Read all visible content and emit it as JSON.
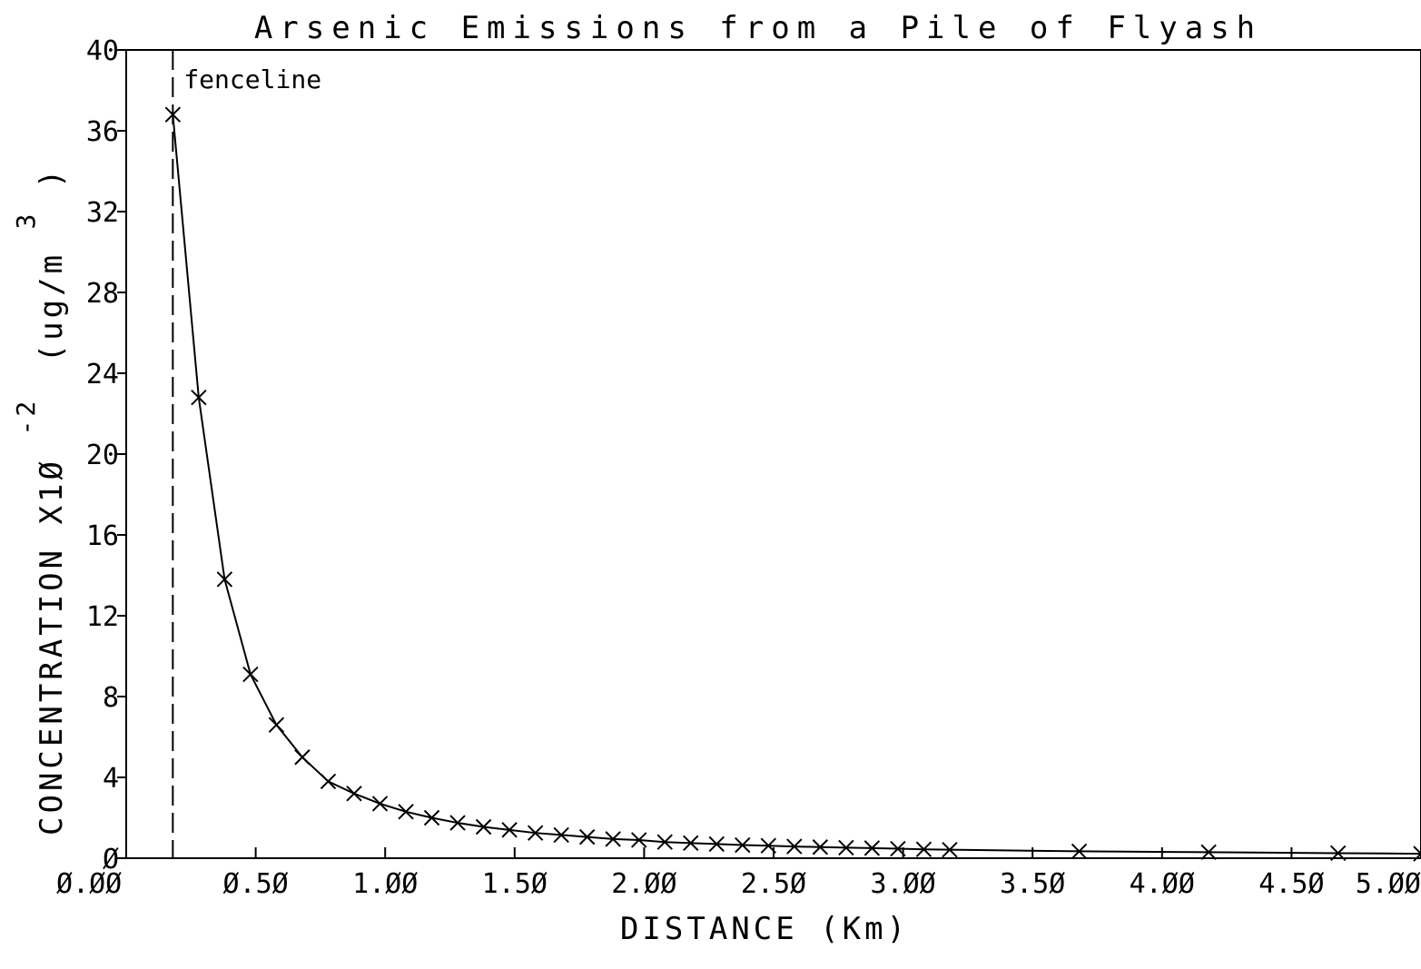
{
  "chart_data": {
    "type": "line",
    "title": "Arsenic Emissions from a Pile of Flyash",
    "xlabel": "DISTANCE (Km)",
    "ylabel": {
      "main": "CONCENTRATION X1Ø",
      "exponent": "-2",
      "unit_prefix": "(ug/m",
      "unit_exponent": "3",
      "unit_suffix": ")"
    },
    "xlim": [
      0,
      5
    ],
    "ylim": [
      0,
      40
    ],
    "x_ticks": [
      "Ø.ØØ",
      "Ø.5Ø",
      "1.ØØ",
      "1.5Ø",
      "2.ØØ",
      "2.5Ø",
      "3.ØØ",
      "3.5Ø",
      "4.ØØ",
      "4.5Ø",
      "5.ØØ"
    ],
    "x_tick_values": [
      0,
      0.5,
      1,
      1.5,
      2,
      2.5,
      3,
      3.5,
      4,
      4.5,
      5
    ],
    "y_ticks": [
      "Ø",
      "4",
      "8",
      "12",
      "16",
      "20",
      "24",
      "28",
      "32",
      "36",
      "40"
    ],
    "y_tick_values": [
      0,
      4,
      8,
      12,
      16,
      20,
      24,
      28,
      32,
      36,
      40
    ],
    "grid": false,
    "fenceline": {
      "x": 0.18,
      "label": "fenceline"
    },
    "series": [
      {
        "x": [
          0.18,
          0.28,
          0.38,
          0.48,
          0.58,
          0.68,
          0.78,
          0.88,
          0.98,
          1.08,
          1.18,
          1.28,
          1.38,
          1.48,
          1.58,
          1.68,
          1.78,
          1.88,
          1.98,
          2.08,
          2.18,
          2.28,
          2.38,
          2.48,
          2.58,
          2.68,
          2.78,
          2.88,
          2.98,
          3.08,
          3.18,
          3.68,
          4.18,
          4.68,
          5.18
        ],
        "y": [
          36.8,
          22.8,
          13.8,
          9.1,
          6.6,
          5.0,
          3.8,
          3.2,
          2.7,
          2.3,
          2.0,
          1.75,
          1.55,
          1.4,
          1.25,
          1.15,
          1.05,
          0.95,
          0.9,
          0.8,
          0.75,
          0.7,
          0.65,
          0.62,
          0.58,
          0.55,
          0.52,
          0.5,
          0.47,
          0.44,
          0.42,
          0.34,
          0.3,
          0.25,
          0.22
        ]
      }
    ]
  }
}
